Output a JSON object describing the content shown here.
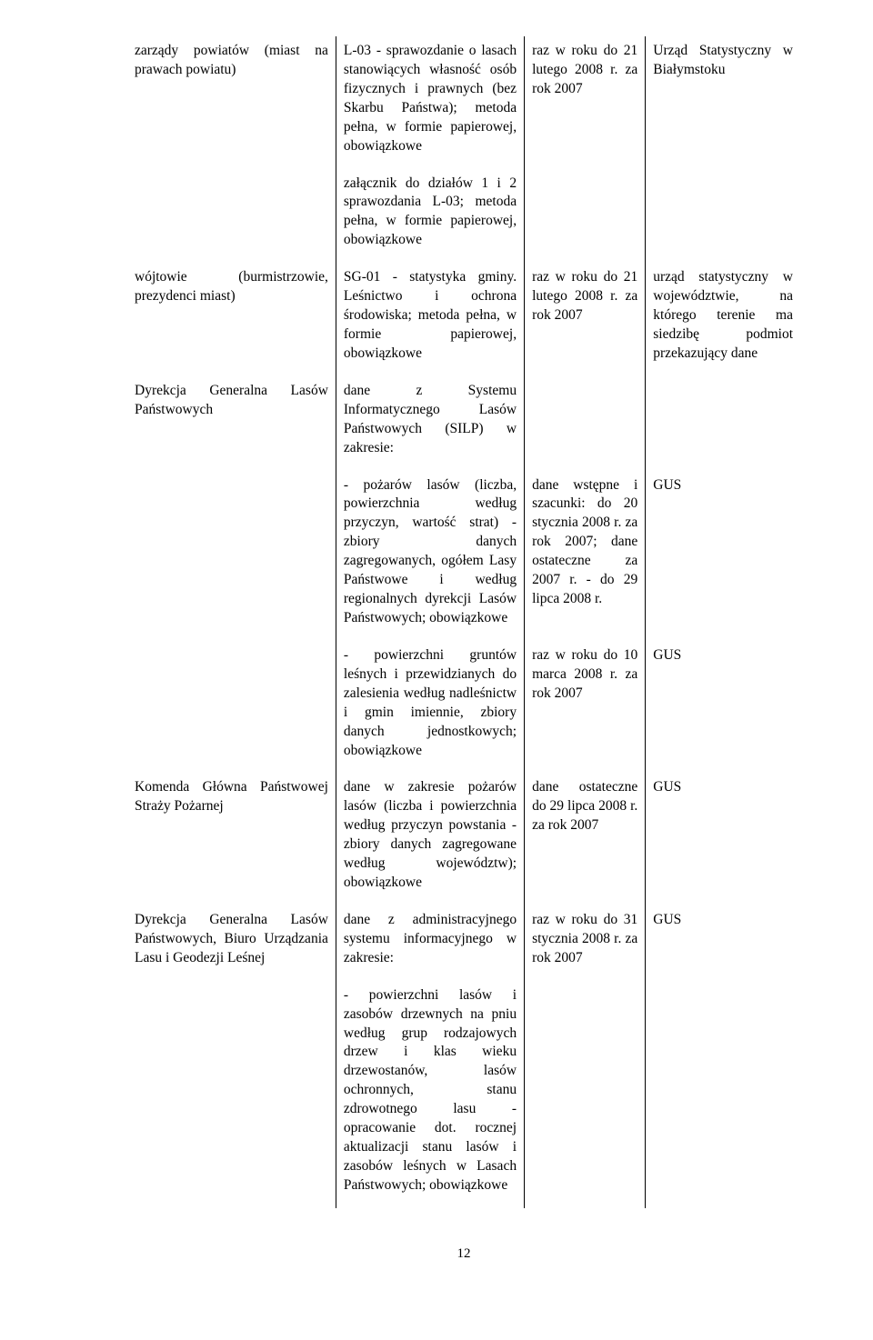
{
  "rows": [
    {
      "c1": "zarządy powiatów (miast na prawach powiatu)",
      "c2": "L-03 - sprawozdanie o lasach stanowiących własność osób fizycznych i prawnych (bez Skarbu Państwa); metoda pełna, w formie papierowej, obowiązkowe",
      "c3": "raz w roku do 21 lutego 2008 r. za rok 2007",
      "c4": "Urząd Statystyczny w Białymstoku"
    },
    {
      "c1": "",
      "c2": "załącznik do działów 1 i 2 sprawozdania L-03; metoda pełna, w formie papierowej, obowiązkowe",
      "c3": "",
      "c4": ""
    },
    {
      "c1": "wójtowie (burmistrzowie, prezydenci miast)",
      "c2": "SG-01 - statystyka gminy. Leśnictwo i ochrona środowiska; metoda pełna, w formie papierowej, obowiązkowe",
      "c3": "raz w roku do 21 lutego 2008 r. za rok 2007",
      "c4": "urząd statystyczny w województwie, na którego terenie ma siedzibę podmiot przekazujący dane"
    },
    {
      "c1": "Dyrekcja Generalna Lasów Państwowych",
      "c2": "dane z Systemu Informatycznego Lasów Państwowych (SILP) w zakresie:",
      "c3": "",
      "c4": ""
    },
    {
      "c1": "",
      "c2": "- pożarów lasów (liczba, powierzchnia według przyczyn, wartość strat) - zbiory danych zagregowanych, ogółem Lasy Państwowe i według regionalnych dyrekcji Lasów Państwowych; obowiązkowe",
      "c3": "dane wstępne i szacunki: do 20 stycznia 2008 r. za rok 2007; dane ostateczne za 2007 r. - do 29 lipca 2008 r.",
      "c4": "GUS"
    },
    {
      "c1": "",
      "c2": "- powierzchni gruntów leśnych i przewidzianych do zalesienia według nadleśnictw i gmin imiennie, zbiory danych jednostkowych; obowiązkowe",
      "c3": "raz w roku do 10 marca 2008 r. za rok 2007",
      "c4": "GUS"
    },
    {
      "c1": "Komenda Główna Państwowej Straży Pożarnej",
      "c2": "dane w zakresie pożarów lasów (liczba i powierzchnia według przyczyn powstania - zbiory danych zagregowane według województw); obowiązkowe",
      "c3": "dane ostateczne do 29 lipca 2008 r. za rok 2007",
      "c4": "GUS"
    },
    {
      "c1": "Dyrekcja Generalna Lasów Państwowych, Biuro Urządzania Lasu i Geodezji Leśnej",
      "c2": "dane z administracyjnego systemu informacyjnego w zakresie:",
      "c3": "raz w roku do 31 stycznia 2008 r. za rok 2007",
      "c4": "GUS"
    },
    {
      "c1": "",
      "c2": "- powierzchni lasów i zasobów drzewnych na pniu według grup rodzajowych drzew i klas wieku drzewostanów, lasów ochronnych, stanu zdrowotnego lasu - opracowanie dot. rocznej aktualizacji stanu lasów i zasobów leśnych w Lasach Państwowych; obowiązkowe",
      "c3": "",
      "c4": ""
    }
  ],
  "pageNumber": "12"
}
